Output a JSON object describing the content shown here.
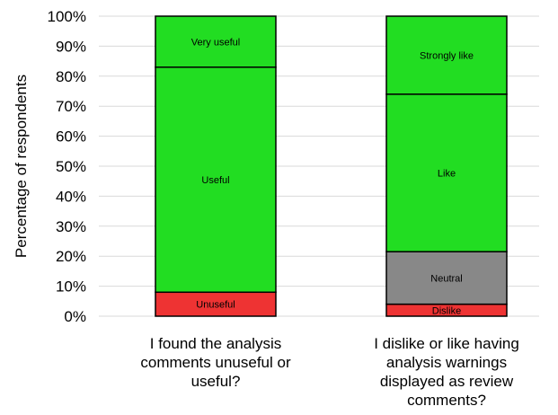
{
  "chart_data": {
    "type": "bar",
    "stacked": true,
    "title": "",
    "xlabel": "",
    "ylabel": "Percentage of respondents",
    "ylim": [
      0,
      100
    ],
    "yticks": [
      "0%",
      "10%",
      "20%",
      "30%",
      "40%",
      "50%",
      "60%",
      "70%",
      "80%",
      "90%",
      "100%"
    ],
    "grid": true,
    "legend": "none",
    "categories": [
      "I found the analysis comments unuseful or useful?",
      "I dislike or like having analysis warnings displayed as review comments?"
    ],
    "category_lines": [
      [
        "I found the analysis",
        "comments unuseful or",
        "useful?"
      ],
      [
        "I dislike or like having",
        "analysis warnings",
        "displayed as review",
        "comments?"
      ]
    ],
    "bars": [
      {
        "category": "I found the analysis comments unuseful or useful?",
        "segments": [
          {
            "label": "Unuseful",
            "value": 8,
            "color": "#ee3333"
          },
          {
            "label": "Useful",
            "value": 75,
            "color": "#22dd22"
          },
          {
            "label": "Very useful",
            "value": 17,
            "color": "#22dd22"
          }
        ]
      },
      {
        "category": "I dislike or like having analysis warnings displayed as review comments?",
        "segments": [
          {
            "label": "Dislike",
            "value": 4,
            "color": "#ee3333"
          },
          {
            "label": "Neutral",
            "value": 17.5,
            "color": "#888888"
          },
          {
            "label": "Like",
            "value": 52.5,
            "color": "#22dd22"
          },
          {
            "label": "Strongly like",
            "value": 26,
            "color": "#22dd22"
          }
        ]
      }
    ]
  }
}
